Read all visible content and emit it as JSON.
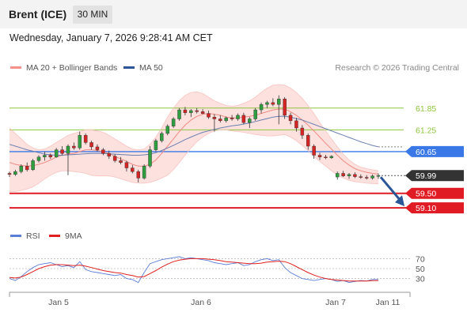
{
  "header": {
    "title": "Brent (ICE)",
    "timeframe": "30 MIN"
  },
  "datetime": "Wednesday, January 7, 2026 9:28:41 AM CET",
  "legend_main": [
    {
      "label": "MA 20 + Bollinger Bands",
      "color": "#f4908a"
    },
    {
      "label": "MA 50",
      "color": "#2a5597"
    }
  ],
  "credit": "Research © 2026 Trading Central",
  "legend_rsi": [
    {
      "label": "RSI",
      "color": "#5b7fd6"
    },
    {
      "label": "9MA",
      "color": "#e02020"
    }
  ],
  "chart_data": {
    "type": "candlestick",
    "y_range": [
      58.95,
      62.65
    ],
    "levels": [
      {
        "label": "61.85",
        "value": 61.85,
        "kind": "resistance",
        "color": "#8dc63f"
      },
      {
        "label": "61.25",
        "value": 61.25,
        "kind": "resistance",
        "color": "#8dc63f"
      },
      {
        "label": "60.65",
        "value": 60.65,
        "kind": "pivot",
        "color": "#3a78e8"
      },
      {
        "label": "59.99",
        "value": 59.99,
        "kind": "last",
        "color": "#333333"
      },
      {
        "label": "59.50",
        "value": 59.5,
        "kind": "support",
        "color": "#e01b24"
      },
      {
        "label": "59.10",
        "value": 59.1,
        "kind": "support",
        "color": "#e01b24"
      }
    ],
    "forecast_target": 59.1,
    "x_labels": [
      "Jan 5",
      "Jan 6",
      "Jan 7",
      "Jan 11"
    ],
    "candles": [
      [
        60.05,
        60.1,
        59.95,
        60.02
      ],
      [
        60.02,
        60.15,
        59.98,
        60.1
      ],
      [
        60.1,
        60.3,
        60.05,
        60.25
      ],
      [
        60.25,
        60.35,
        60.1,
        60.15
      ],
      [
        60.15,
        60.45,
        60.12,
        60.4
      ],
      [
        60.4,
        60.55,
        60.35,
        60.5
      ],
      [
        60.5,
        60.65,
        60.4,
        60.55
      ],
      [
        60.55,
        60.6,
        60.45,
        60.5
      ],
      [
        60.5,
        60.75,
        60.48,
        60.7
      ],
      [
        60.7,
        60.8,
        60.55,
        60.6
      ],
      [
        60.6,
        60.85,
        60.0,
        60.8
      ],
      [
        60.8,
        60.9,
        60.7,
        60.75
      ],
      [
        60.75,
        61.2,
        60.7,
        61.1
      ],
      [
        61.1,
        61.15,
        60.85,
        60.9
      ],
      [
        60.9,
        60.95,
        60.7,
        60.78
      ],
      [
        60.78,
        60.85,
        60.65,
        60.7
      ],
      [
        60.7,
        60.75,
        60.55,
        60.6
      ],
      [
        60.6,
        60.68,
        60.45,
        60.52
      ],
      [
        60.52,
        60.58,
        60.35,
        60.4
      ],
      [
        60.4,
        60.5,
        60.3,
        60.35
      ],
      [
        60.35,
        60.4,
        60.1,
        60.2
      ],
      [
        60.2,
        60.28,
        60.05,
        60.1
      ],
      [
        60.1,
        60.15,
        59.8,
        59.92
      ],
      [
        59.92,
        60.3,
        59.88,
        60.25
      ],
      [
        60.25,
        60.8,
        60.2,
        60.7
      ],
      [
        60.7,
        61.0,
        60.65,
        60.95
      ],
      [
        60.95,
        61.2,
        60.9,
        61.15
      ],
      [
        61.15,
        61.4,
        61.1,
        61.35
      ],
      [
        61.35,
        61.6,
        61.3,
        61.55
      ],
      [
        61.55,
        61.85,
        61.5,
        61.8
      ],
      [
        61.8,
        61.88,
        61.65,
        61.72
      ],
      [
        61.72,
        61.82,
        61.6,
        61.78
      ],
      [
        61.78,
        61.85,
        61.7,
        61.75
      ],
      [
        61.75,
        61.82,
        61.68,
        61.7
      ],
      [
        61.7,
        61.78,
        61.55,
        61.6
      ],
      [
        61.6,
        61.68,
        61.2,
        61.55
      ],
      [
        61.55,
        61.65,
        61.45,
        61.5
      ],
      [
        61.5,
        61.62,
        61.45,
        61.58
      ],
      [
        61.58,
        61.66,
        61.5,
        61.55
      ],
      [
        61.55,
        61.7,
        61.5,
        61.65
      ],
      [
        61.65,
        61.72,
        61.4,
        61.45
      ],
      [
        61.45,
        61.6,
        61.3,
        61.55
      ],
      [
        61.55,
        61.85,
        61.5,
        61.8
      ],
      [
        61.8,
        62.0,
        61.7,
        61.95
      ],
      [
        61.95,
        62.05,
        61.85,
        62.0
      ],
      [
        62.0,
        62.12,
        61.9,
        61.95
      ],
      [
        61.95,
        62.2,
        61.4,
        62.1
      ],
      [
        62.1,
        62.15,
        61.55,
        61.65
      ],
      [
        61.65,
        61.72,
        61.4,
        61.5
      ],
      [
        61.5,
        61.58,
        61.2,
        61.3
      ],
      [
        61.3,
        61.38,
        61.0,
        61.1
      ],
      [
        61.1,
        61.15,
        60.7,
        60.8
      ],
      [
        60.8,
        60.85,
        60.45,
        60.55
      ],
      [
        60.55,
        60.62,
        60.42,
        60.5
      ],
      [
        60.5,
        60.56,
        60.44,
        60.48
      ],
      [
        60.48,
        60.55,
        60.45,
        60.52
      ],
      [
        59.95,
        60.1,
        59.88,
        60.05
      ],
      [
        60.05,
        60.12,
        59.95,
        59.98
      ],
      [
        59.98,
        60.06,
        59.9,
        60.02
      ],
      [
        60.02,
        60.08,
        59.92,
        59.96
      ],
      [
        59.96,
        60.02,
        59.9,
        59.94
      ],
      [
        59.94,
        60.0,
        59.88,
        59.92
      ],
      [
        59.92,
        60.02,
        59.88,
        59.98
      ],
      [
        59.98,
        60.05,
        59.9,
        59.99
      ]
    ],
    "ma20": [
      60.35,
      60.3,
      60.27,
      60.25,
      60.26,
      60.3,
      60.35,
      60.42,
      60.5,
      60.55,
      60.58,
      60.6,
      60.65,
      60.7,
      60.7,
      60.68,
      60.65,
      60.6,
      60.52,
      60.45,
      60.38,
      60.3,
      60.25,
      60.25,
      60.3,
      60.42,
      60.6,
      60.8,
      61.0,
      61.2,
      61.38,
      61.52,
      61.62,
      61.68,
      61.7,
      61.68,
      61.65,
      61.6,
      61.58,
      61.58,
      61.6,
      61.62,
      61.65,
      61.7,
      61.75,
      61.8,
      61.82,
      61.82,
      61.75,
      61.65,
      61.52,
      61.38,
      61.22,
      61.05,
      60.88,
      60.72,
      60.55,
      60.4,
      60.28,
      60.18,
      60.12,
      60.08,
      60.05,
      60.03
    ],
    "bb_upper": [
      61.3,
      61.15,
      61.0,
      60.85,
      60.75,
      60.7,
      60.72,
      60.8,
      60.9,
      61.0,
      61.1,
      61.15,
      61.2,
      61.25,
      61.25,
      61.22,
      61.18,
      61.1,
      61.0,
      60.9,
      60.8,
      60.72,
      60.7,
      60.72,
      60.85,
      61.05,
      61.3,
      61.6,
      61.85,
      62.05,
      62.2,
      62.28,
      62.3,
      62.25,
      62.15,
      62.05,
      61.98,
      61.92,
      61.9,
      61.92,
      61.98,
      62.05,
      62.15,
      62.28,
      62.4,
      62.48,
      62.5,
      62.48,
      62.4,
      62.28,
      62.12,
      61.92,
      61.7,
      61.45,
      61.22,
      61.0,
      60.78,
      60.58,
      60.42,
      60.3,
      60.22,
      60.18,
      60.15,
      60.12
    ],
    "bb_lower": [
      59.55,
      59.55,
      59.58,
      59.62,
      59.68,
      59.78,
      59.9,
      60.0,
      60.08,
      60.12,
      60.12,
      60.1,
      60.08,
      60.05,
      60.0,
      59.98,
      59.98,
      59.98,
      59.95,
      59.9,
      59.85,
      59.8,
      59.78,
      59.78,
      59.8,
      59.85,
      59.92,
      60.0,
      60.15,
      60.35,
      60.55,
      60.75,
      60.92,
      61.05,
      61.15,
      61.22,
      61.25,
      61.25,
      61.22,
      61.2,
      61.18,
      61.15,
      61.12,
      61.1,
      61.08,
      61.08,
      61.1,
      61.12,
      61.05,
      60.95,
      60.82,
      60.68,
      60.52,
      60.38,
      60.25,
      60.12,
      60.0,
      59.92,
      59.86,
      59.82,
      59.8,
      59.78,
      59.77,
      59.76
    ],
    "ma50": [
      60.85,
      60.8,
      60.75,
      60.7,
      60.66,
      60.62,
      60.58,
      60.56,
      60.55,
      60.55,
      60.56,
      60.57,
      60.58,
      60.59,
      60.6,
      60.6,
      60.6,
      60.59,
      60.58,
      60.57,
      60.56,
      60.55,
      60.55,
      60.56,
      60.58,
      60.62,
      60.68,
      60.75,
      60.82,
      60.9,
      60.98,
      61.05,
      61.12,
      61.18,
      61.22,
      61.26,
      61.3,
      61.33,
      61.36,
      61.38,
      61.41,
      61.44,
      61.48,
      61.52,
      61.56,
      61.6,
      61.62,
      61.62,
      61.6,
      61.56,
      61.52,
      61.46,
      61.4,
      61.34,
      61.28,
      61.22,
      61.16,
      61.1,
      61.04,
      60.98,
      60.92,
      60.87,
      60.82,
      60.78
    ],
    "rsi": {
      "levels": [
        70,
        50,
        30
      ],
      "y_range": [
        15,
        85
      ],
      "rsi": [
        30,
        26,
        34,
        44,
        52,
        58,
        60,
        62,
        58,
        54,
        56,
        52,
        64,
        48,
        44,
        42,
        40,
        38,
        36,
        38,
        30,
        28,
        22,
        42,
        60,
        64,
        68,
        70,
        72,
        74,
        70,
        72,
        70,
        68,
        66,
        62,
        60,
        58,
        60,
        62,
        56,
        58,
        64,
        68,
        70,
        66,
        68,
        52,
        42,
        36,
        30,
        28,
        26,
        28,
        30,
        28,
        24,
        26,
        22,
        24,
        26,
        25,
        28,
        28
      ],
      "ma9": [
        32,
        31,
        33,
        38,
        44,
        50,
        54,
        57,
        58,
        58,
        57,
        56,
        57,
        55,
        52,
        49,
        46,
        44,
        42,
        41,
        38,
        36,
        33,
        34,
        40,
        46,
        53,
        59,
        64,
        67,
        69,
        70,
        70,
        70,
        69,
        68,
        66,
        64,
        63,
        62,
        61,
        60,
        60,
        61,
        63,
        64,
        65,
        64,
        60,
        54,
        48,
        42,
        37,
        33,
        30,
        28,
        27,
        26,
        25,
        25,
        25,
        25,
        26,
        26
      ]
    }
  }
}
